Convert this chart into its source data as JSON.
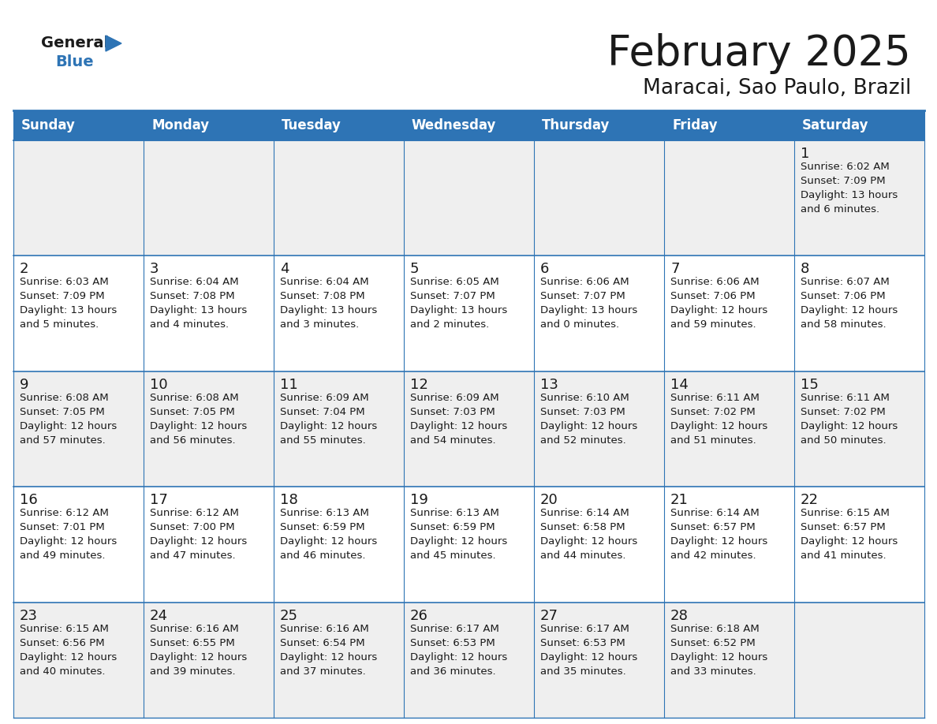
{
  "title": "February 2025",
  "subtitle": "Maracai, Sao Paulo, Brazil",
  "header_bg_color": "#2E74B5",
  "header_text_color": "#FFFFFF",
  "cell_bg_color": "#FFFFFF",
  "cell_alt_bg_color": "#EFEFEF",
  "border_color": "#2E74B5",
  "title_color": "#1A1A1A",
  "subtitle_color": "#1A1A1A",
  "day_text_color": "#1A1A1A",
  "weekdays": [
    "Sunday",
    "Monday",
    "Tuesday",
    "Wednesday",
    "Thursday",
    "Friday",
    "Saturday"
  ],
  "days": [
    {
      "day": 1,
      "col": 6,
      "row": 0,
      "sunrise": "6:02 AM",
      "sunset": "7:09 PM",
      "daylight_hours": 13,
      "daylight_minutes": 6
    },
    {
      "day": 2,
      "col": 0,
      "row": 1,
      "sunrise": "6:03 AM",
      "sunset": "7:09 PM",
      "daylight_hours": 13,
      "daylight_minutes": 5
    },
    {
      "day": 3,
      "col": 1,
      "row": 1,
      "sunrise": "6:04 AM",
      "sunset": "7:08 PM",
      "daylight_hours": 13,
      "daylight_minutes": 4
    },
    {
      "day": 4,
      "col": 2,
      "row": 1,
      "sunrise": "6:04 AM",
      "sunset": "7:08 PM",
      "daylight_hours": 13,
      "daylight_minutes": 3
    },
    {
      "day": 5,
      "col": 3,
      "row": 1,
      "sunrise": "6:05 AM",
      "sunset": "7:07 PM",
      "daylight_hours": 13,
      "daylight_minutes": 2
    },
    {
      "day": 6,
      "col": 4,
      "row": 1,
      "sunrise": "6:06 AM",
      "sunset": "7:07 PM",
      "daylight_hours": 13,
      "daylight_minutes": 0
    },
    {
      "day": 7,
      "col": 5,
      "row": 1,
      "sunrise": "6:06 AM",
      "sunset": "7:06 PM",
      "daylight_hours": 12,
      "daylight_minutes": 59
    },
    {
      "day": 8,
      "col": 6,
      "row": 1,
      "sunrise": "6:07 AM",
      "sunset": "7:06 PM",
      "daylight_hours": 12,
      "daylight_minutes": 58
    },
    {
      "day": 9,
      "col": 0,
      "row": 2,
      "sunrise": "6:08 AM",
      "sunset": "7:05 PM",
      "daylight_hours": 12,
      "daylight_minutes": 57
    },
    {
      "day": 10,
      "col": 1,
      "row": 2,
      "sunrise": "6:08 AM",
      "sunset": "7:05 PM",
      "daylight_hours": 12,
      "daylight_minutes": 56
    },
    {
      "day": 11,
      "col": 2,
      "row": 2,
      "sunrise": "6:09 AM",
      "sunset": "7:04 PM",
      "daylight_hours": 12,
      "daylight_minutes": 55
    },
    {
      "day": 12,
      "col": 3,
      "row": 2,
      "sunrise": "6:09 AM",
      "sunset": "7:03 PM",
      "daylight_hours": 12,
      "daylight_minutes": 54
    },
    {
      "day": 13,
      "col": 4,
      "row": 2,
      "sunrise": "6:10 AM",
      "sunset": "7:03 PM",
      "daylight_hours": 12,
      "daylight_minutes": 52
    },
    {
      "day": 14,
      "col": 5,
      "row": 2,
      "sunrise": "6:11 AM",
      "sunset": "7:02 PM",
      "daylight_hours": 12,
      "daylight_minutes": 51
    },
    {
      "day": 15,
      "col": 6,
      "row": 2,
      "sunrise": "6:11 AM",
      "sunset": "7:02 PM",
      "daylight_hours": 12,
      "daylight_minutes": 50
    },
    {
      "day": 16,
      "col": 0,
      "row": 3,
      "sunrise": "6:12 AM",
      "sunset": "7:01 PM",
      "daylight_hours": 12,
      "daylight_minutes": 49
    },
    {
      "day": 17,
      "col": 1,
      "row": 3,
      "sunrise": "6:12 AM",
      "sunset": "7:00 PM",
      "daylight_hours": 12,
      "daylight_minutes": 47
    },
    {
      "day": 18,
      "col": 2,
      "row": 3,
      "sunrise": "6:13 AM",
      "sunset": "6:59 PM",
      "daylight_hours": 12,
      "daylight_minutes": 46
    },
    {
      "day": 19,
      "col": 3,
      "row": 3,
      "sunrise": "6:13 AM",
      "sunset": "6:59 PM",
      "daylight_hours": 12,
      "daylight_minutes": 45
    },
    {
      "day": 20,
      "col": 4,
      "row": 3,
      "sunrise": "6:14 AM",
      "sunset": "6:58 PM",
      "daylight_hours": 12,
      "daylight_minutes": 44
    },
    {
      "day": 21,
      "col": 5,
      "row": 3,
      "sunrise": "6:14 AM",
      "sunset": "6:57 PM",
      "daylight_hours": 12,
      "daylight_minutes": 42
    },
    {
      "day": 22,
      "col": 6,
      "row": 3,
      "sunrise": "6:15 AM",
      "sunset": "6:57 PM",
      "daylight_hours": 12,
      "daylight_minutes": 41
    },
    {
      "day": 23,
      "col": 0,
      "row": 4,
      "sunrise": "6:15 AM",
      "sunset": "6:56 PM",
      "daylight_hours": 12,
      "daylight_minutes": 40
    },
    {
      "day": 24,
      "col": 1,
      "row": 4,
      "sunrise": "6:16 AM",
      "sunset": "6:55 PM",
      "daylight_hours": 12,
      "daylight_minutes": 39
    },
    {
      "day": 25,
      "col": 2,
      "row": 4,
      "sunrise": "6:16 AM",
      "sunset": "6:54 PM",
      "daylight_hours": 12,
      "daylight_minutes": 37
    },
    {
      "day": 26,
      "col": 3,
      "row": 4,
      "sunrise": "6:17 AM",
      "sunset": "6:53 PM",
      "daylight_hours": 12,
      "daylight_minutes": 36
    },
    {
      "day": 27,
      "col": 4,
      "row": 4,
      "sunrise": "6:17 AM",
      "sunset": "6:53 PM",
      "daylight_hours": 12,
      "daylight_minutes": 35
    },
    {
      "day": 28,
      "col": 5,
      "row": 4,
      "sunrise": "6:18 AM",
      "sunset": "6:52 PM",
      "daylight_hours": 12,
      "daylight_minutes": 33
    }
  ],
  "num_rows": 5,
  "num_cols": 7,
  "logo_triangle_color": "#2E74B5"
}
